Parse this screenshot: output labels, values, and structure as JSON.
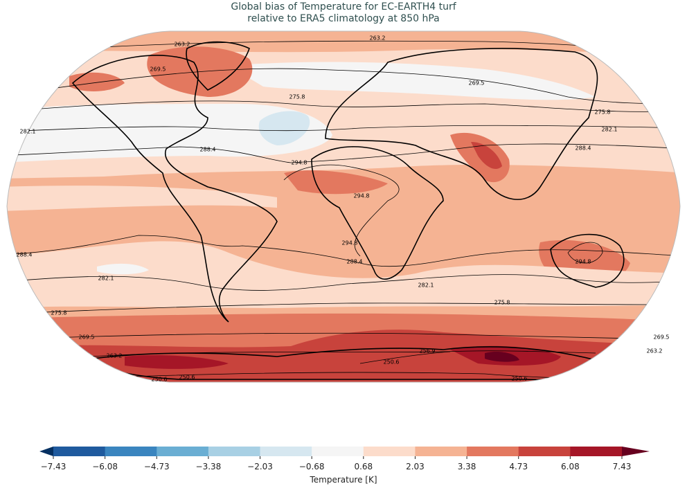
{
  "title": {
    "line1": "Global bias of Temperature for EC-EARTH4 turf",
    "line2": "relative to ERA5 climatology at 850 hPa"
  },
  "map": {
    "projection": "Robinson",
    "fill_variable": "Temperature bias [K]",
    "contour_variable": "ERA5 climatological temperature [K]",
    "contour_labels": [
      "263.2",
      "263.2",
      "269.5",
      "269.5",
      "275.8",
      "275.8",
      "282.1",
      "282.1",
      "288.4",
      "288.4",
      "294.8",
      "294.8",
      "294.8",
      "294.8",
      "288.4",
      "288.4",
      "282.1",
      "282.1",
      "275.8",
      "275.8",
      "269.5",
      "269.5",
      "263.2",
      "263.2",
      "256.9",
      "250.6",
      "250.6",
      "250.6",
      "250.6"
    ]
  },
  "colorbar": {
    "label": "Temperature [K]",
    "ticks": [
      "−7.43",
      "−6.08",
      "−4.73",
      "−3.38",
      "−2.03",
      "−0.68",
      "0.68",
      "2.03",
      "3.38",
      "4.73",
      "6.08",
      "7.43"
    ],
    "under_color": "#053061",
    "over_color": "#67001f",
    "colors": [
      "#1f5a9e",
      "#3a85bf",
      "#6aaed3",
      "#a8d0e4",
      "#d6e7f0",
      "#f5f5f5",
      "#fcdccb",
      "#f5b393",
      "#e3785f",
      "#c8433c",
      "#a51627"
    ],
    "extend": "both"
  }
}
